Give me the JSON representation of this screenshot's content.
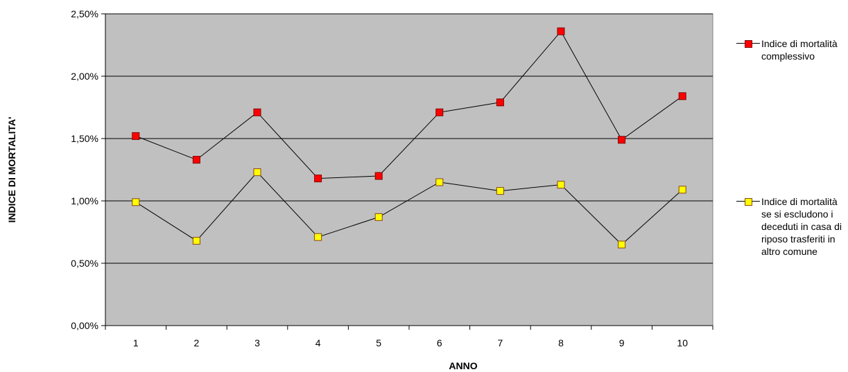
{
  "chart_data": {
    "type": "line",
    "categories": [
      "1",
      "2",
      "3",
      "4",
      "5",
      "6",
      "7",
      "8",
      "9",
      "10"
    ],
    "series": [
      {
        "name": "Indice di mortalità complessivo",
        "values": [
          1.52,
          1.33,
          1.71,
          1.18,
          1.2,
          1.71,
          1.79,
          2.36,
          1.49,
          1.84
        ],
        "marker_fill": "#ff0000",
        "marker_border": "#800000"
      },
      {
        "name": "Indice di mortalità se si escludono i deceduti in casa di riposo trasferiti in altro comune",
        "values": [
          0.99,
          0.68,
          1.23,
          0.71,
          0.87,
          1.15,
          1.08,
          1.13,
          0.65,
          1.09
        ],
        "marker_fill": "#ffff00",
        "marker_border": "#8b4513"
      }
    ],
    "y_ticks": [
      "0,00%",
      "0,50%",
      "1,00%",
      "1,50%",
      "2,00%",
      "2,50%"
    ],
    "ylim": [
      0,
      2.5
    ],
    "xlabel": "ANNO",
    "ylabel": "INDICE DI MORTALITA'",
    "title": "",
    "grid": true,
    "plot_background": "#c0c0c0",
    "legend_position": "right"
  }
}
